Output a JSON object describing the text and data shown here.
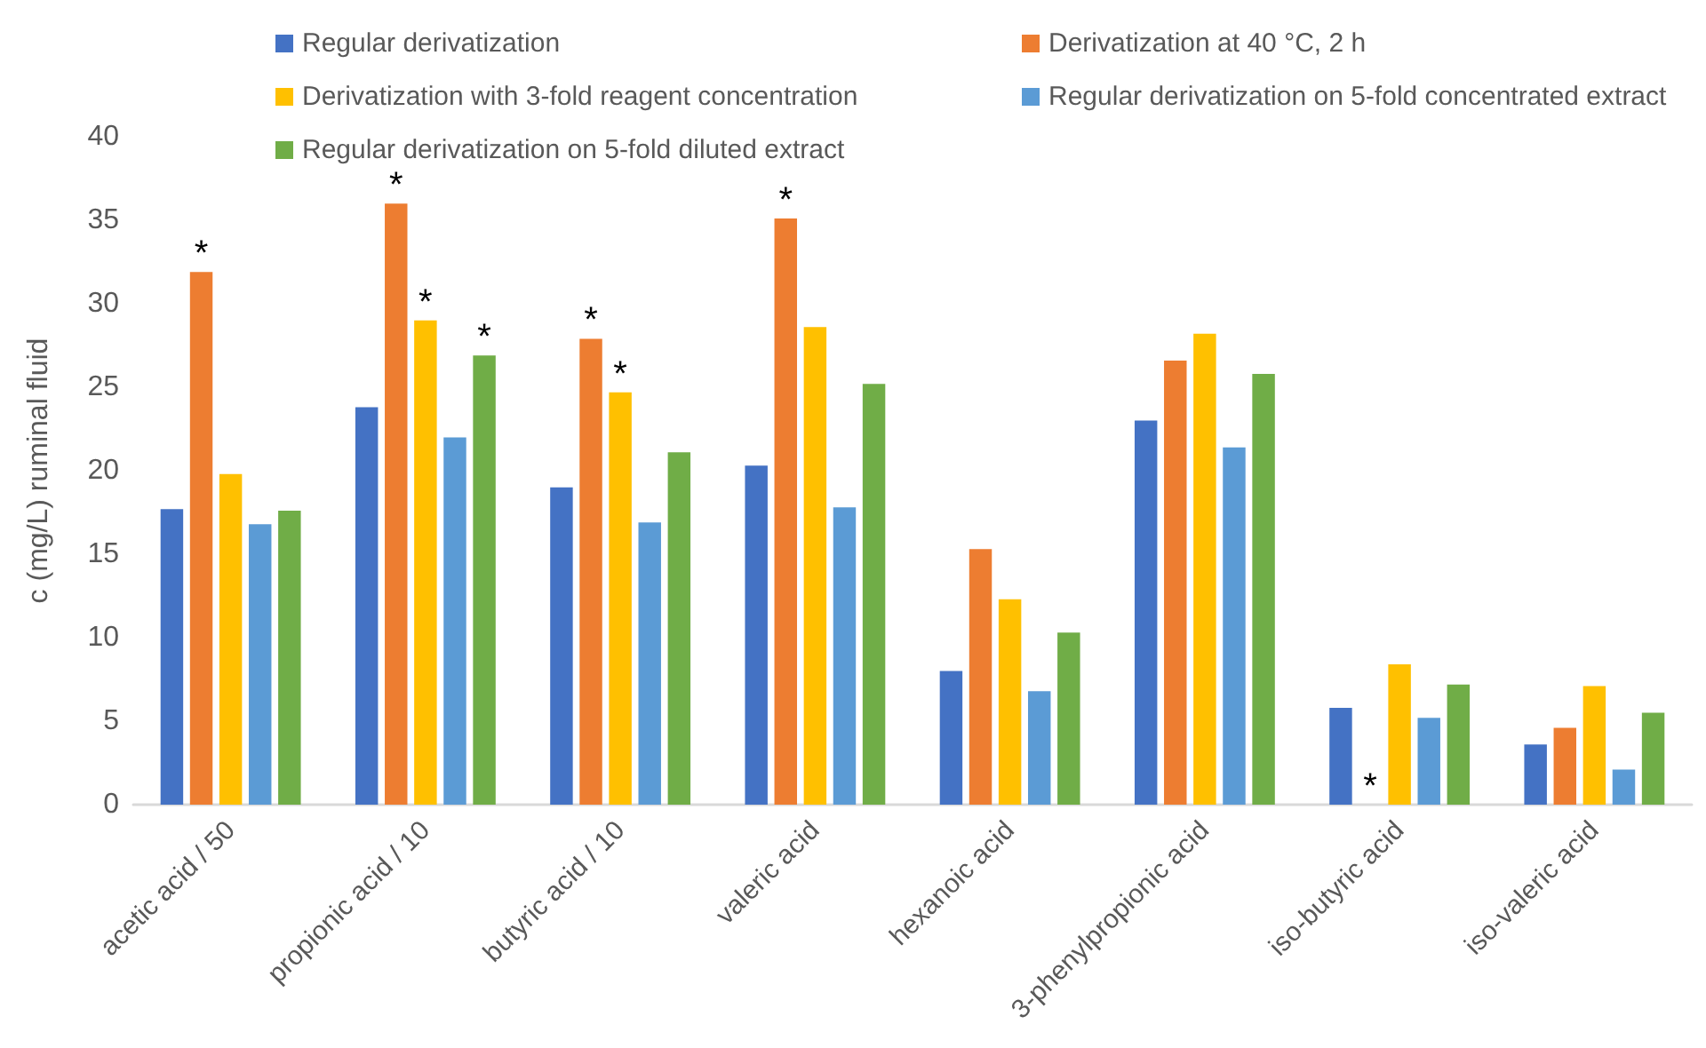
{
  "chart_data": {
    "type": "bar",
    "ylabel": "c (mg/L) ruminal fluid",
    "categories": [
      "acetic acid / 50",
      "propionic acid / 10",
      "butyric acid / 10",
      "valeric acid",
      "hexanoic acid",
      "3-phenylpropionic acid",
      "iso-butyric acid",
      "iso-valeric acid"
    ],
    "series": [
      {
        "name": "Regular derivatization",
        "color": "#4472c4",
        "values": [
          17.7,
          23.8,
          19.0,
          20.3,
          8.0,
          23.0,
          5.8,
          3.6
        ]
      },
      {
        "name": "Derivatization at 40 °C, 2 h",
        "color": "#ed7d31",
        "values": [
          31.9,
          36.0,
          27.9,
          35.1,
          15.3,
          26.6,
          0,
          4.6
        ],
        "value_labels": [
          "*",
          "*",
          "*",
          "*",
          null,
          null,
          "*",
          null
        ]
      },
      {
        "name": "Derivatization with 3-fold reagent concentration",
        "color": "#ffc000",
        "values": [
          19.8,
          29.0,
          24.7,
          28.6,
          12.3,
          28.2,
          8.4,
          7.1
        ],
        "value_labels": [
          null,
          "*",
          "*",
          null,
          null,
          null,
          null,
          null
        ]
      },
      {
        "name": "Regular derivatization on 5-fold concentrated extract",
        "color": "#5b9bd5",
        "values": [
          16.8,
          22.0,
          16.9,
          17.8,
          6.8,
          21.4,
          5.2,
          2.1
        ]
      },
      {
        "name": "Regular derivatization on 5-fold diluted extract",
        "color": "#70ad47",
        "values": [
          17.6,
          26.9,
          21.1,
          25.2,
          10.3,
          25.8,
          7.2,
          5.5
        ],
        "value_labels": [
          null,
          "*",
          null,
          null,
          null,
          null,
          null,
          null
        ]
      }
    ],
    "ylim": [
      0,
      40
    ],
    "yticks": [
      0,
      5,
      10,
      15,
      20,
      25,
      30,
      35,
      40
    ],
    "grid": false,
    "legend": "top"
  }
}
